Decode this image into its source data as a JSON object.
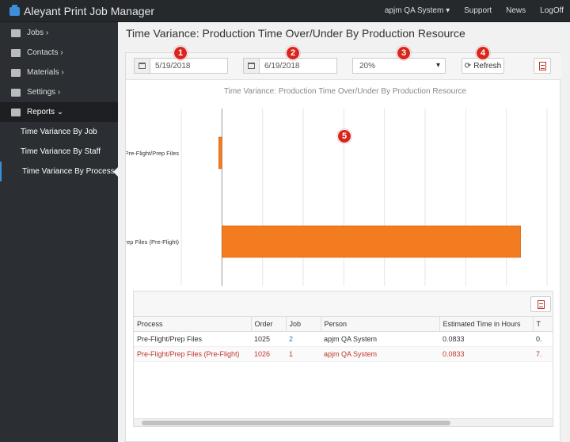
{
  "app": {
    "title": "Aleyant Print Job Manager"
  },
  "topnav": {
    "user": "apjm QA System ▾",
    "support": "Support",
    "news": "News",
    "logoff": "LogOff"
  },
  "sidebar": {
    "items": [
      {
        "label": "Jobs ›"
      },
      {
        "label": "Contacts ›"
      },
      {
        "label": "Materials ›"
      },
      {
        "label": "Settings ›"
      },
      {
        "label": "Reports ⌄"
      }
    ],
    "subitems": [
      {
        "label": "Time Variance By Job"
      },
      {
        "label": "Time Variance By Staff"
      },
      {
        "label": "Time Variance By Process"
      }
    ]
  },
  "page": {
    "title": "Time Variance: Production Time Over/Under By Production Resource"
  },
  "filters": {
    "start_date": "5/19/2018",
    "end_date": "6/19/2018",
    "percent": "20%",
    "refresh_label": "Refresh"
  },
  "badges": [
    "1",
    "2",
    "3",
    "4",
    "5"
  ],
  "chart_data": {
    "type": "bar",
    "orientation": "horizontal",
    "title": "Time Variance: Production Time Over/Under By Production Resource",
    "categories": [
      "Pre-Flight/Prep Files",
      "Pre-Flight/Prep Files (Pre-Flight)"
    ],
    "values": [
      -0.08,
      7.35
    ],
    "xlim": [
      -1,
      8
    ],
    "xticks": [
      "-1.00",
      "0.00",
      "1.00",
      "2.00",
      "3.00",
      "4.00",
      "5.00",
      "6.00",
      "7.00",
      "8.00"
    ],
    "grid": true,
    "color": "#f47c20"
  },
  "table": {
    "columns": [
      "Process",
      "Order",
      "Job",
      "Person",
      "Estimated Time in Hours",
      "T"
    ],
    "rows": [
      [
        "Pre-Flight/Prep Files",
        "1025",
        "2",
        "apjm QA System",
        "0.0833",
        "0."
      ],
      [
        "Pre-Flight/Prep Files (Pre-Flight)",
        "1026",
        "1",
        "apjm QA System",
        "0.0833",
        "7."
      ]
    ]
  },
  "colors": {
    "accent": "#3b8fd9",
    "bar": "#f47c20",
    "badge": "#d9251c"
  }
}
